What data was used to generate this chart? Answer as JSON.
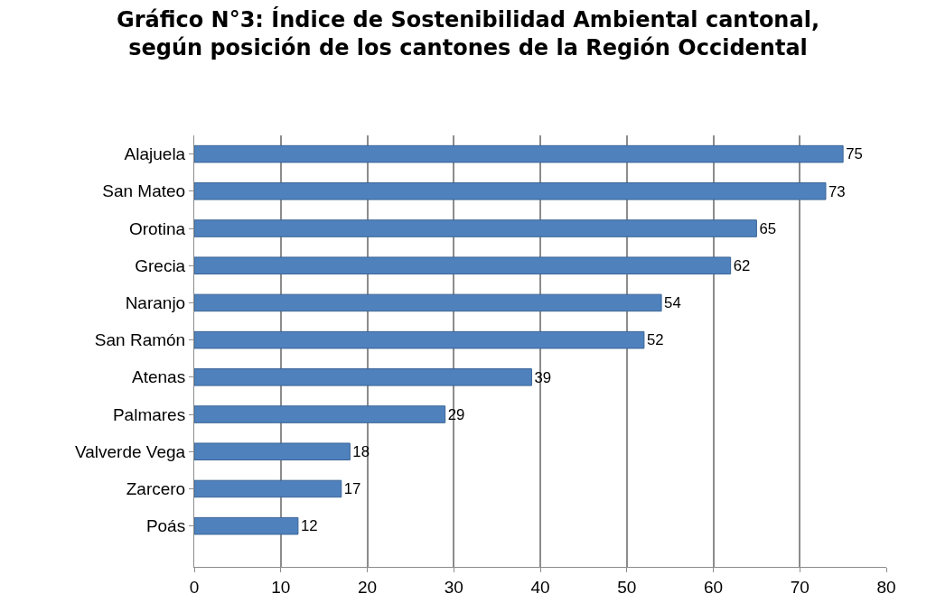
{
  "chart_data": {
    "type": "bar",
    "orientation": "horizontal",
    "title": "Gráfico N°3: Índice de Sostenibilidad Ambiental cantonal,\nsegún posición de los cantones de la Región Occidental",
    "categories": [
      "Alajuela",
      "San Mateo",
      "Orotina",
      "Grecia",
      "Naranjo",
      "San Ramón",
      "Atenas",
      "Palmares",
      "Valverde Vega",
      "Zarcero",
      "Poás"
    ],
    "values": [
      75,
      73,
      65,
      62,
      54,
      52,
      39,
      29,
      18,
      17,
      12
    ],
    "color": "#4f81bd",
    "data_labels": true,
    "xlim": [
      0,
      80
    ],
    "xticks": [
      0,
      10,
      20,
      30,
      40,
      50,
      60,
      70,
      80
    ],
    "grid": "x",
    "legend": false
  }
}
